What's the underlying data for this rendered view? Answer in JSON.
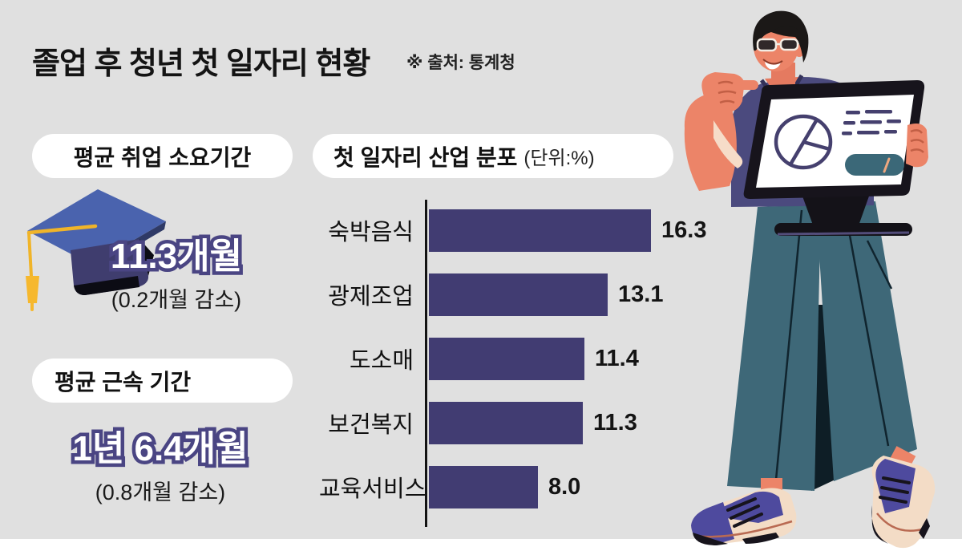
{
  "page": {
    "background_color": "#e0e0e0",
    "accent_color": "#413c72",
    "outline_color": "#4a4583"
  },
  "header": {
    "title": "졸업 후 청년 첫 일자리 현황",
    "source": "※ 출처: 통계청"
  },
  "metrics": [
    {
      "label": "평균 취업 소요기간",
      "value": "11.3개월",
      "change": "(0.2개월 감소)",
      "icon": "graduation-cap-icon"
    },
    {
      "label": "평균 근속 기간",
      "value": "1년 6.4개월",
      "change": "(0.8개월 감소)"
    }
  ],
  "chart_data": {
    "type": "bar",
    "orientation": "horizontal",
    "title": "첫 일자리 산업 분포",
    "unit_label": "(단위:%)",
    "categories": [
      "숙박음식",
      "광제조업",
      "도소매",
      "보건복지",
      "교육서비스"
    ],
    "values": [
      16.3,
      13.1,
      11.4,
      11.3,
      8.0
    ],
    "value_labels": [
      "16.3",
      "13.1",
      "11.4",
      "11.3",
      "8.0"
    ],
    "bar_color": "#413c72",
    "xlim": [
      0,
      17.5
    ],
    "grid": false,
    "legend": "none"
  },
  "illustration": {
    "name": "person-presenting-tablet-illustration",
    "screen_icons": [
      "pie-chart-icon",
      "text-lines-icon",
      "button-shape"
    ]
  }
}
